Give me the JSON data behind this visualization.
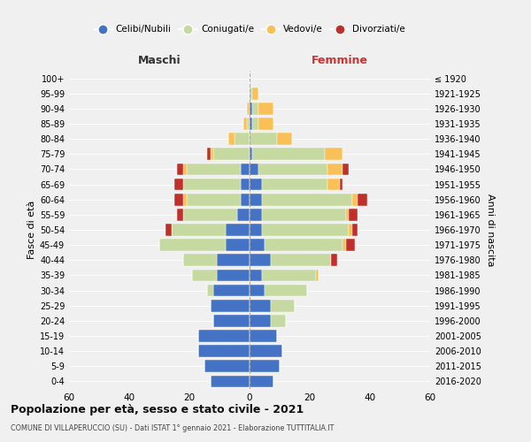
{
  "age_groups": [
    "0-4",
    "5-9",
    "10-14",
    "15-19",
    "20-24",
    "25-29",
    "30-34",
    "35-39",
    "40-44",
    "45-49",
    "50-54",
    "55-59",
    "60-64",
    "65-69",
    "70-74",
    "75-79",
    "80-84",
    "85-89",
    "90-94",
    "95-99",
    "100+"
  ],
  "birth_years": [
    "2016-2020",
    "2011-2015",
    "2006-2010",
    "2001-2005",
    "1996-2000",
    "1991-1995",
    "1986-1990",
    "1981-1985",
    "1976-1980",
    "1971-1975",
    "1966-1970",
    "1961-1965",
    "1956-1960",
    "1951-1955",
    "1946-1950",
    "1941-1945",
    "1936-1940",
    "1931-1935",
    "1926-1930",
    "1921-1925",
    "≤ 1920"
  ],
  "male": {
    "celibi": [
      13,
      15,
      17,
      17,
      12,
      13,
      12,
      11,
      11,
      8,
      8,
      4,
      3,
      3,
      3,
      0,
      0,
      0,
      0,
      0,
      0
    ],
    "coniugati": [
      0,
      0,
      0,
      0,
      0,
      0,
      2,
      8,
      11,
      22,
      18,
      18,
      18,
      19,
      18,
      12,
      5,
      1,
      0,
      0,
      0
    ],
    "vedovi": [
      0,
      0,
      0,
      0,
      0,
      0,
      0,
      0,
      0,
      0,
      0,
      0,
      1,
      0,
      1,
      1,
      2,
      1,
      1,
      0,
      0
    ],
    "divorziati": [
      0,
      0,
      0,
      0,
      0,
      0,
      0,
      0,
      0,
      0,
      2,
      2,
      3,
      3,
      2,
      1,
      0,
      0,
      0,
      0,
      0
    ]
  },
  "female": {
    "nubili": [
      8,
      10,
      11,
      9,
      7,
      7,
      5,
      4,
      7,
      5,
      4,
      4,
      4,
      4,
      3,
      1,
      0,
      1,
      1,
      0,
      0
    ],
    "coniugate": [
      0,
      0,
      0,
      0,
      5,
      8,
      14,
      18,
      20,
      26,
      29,
      28,
      30,
      22,
      23,
      24,
      9,
      2,
      2,
      1,
      0
    ],
    "vedove": [
      0,
      0,
      0,
      0,
      0,
      0,
      0,
      1,
      0,
      1,
      1,
      1,
      2,
      4,
      5,
      6,
      5,
      5,
      5,
      2,
      0
    ],
    "divorziate": [
      0,
      0,
      0,
      0,
      0,
      0,
      0,
      0,
      2,
      3,
      2,
      3,
      3,
      1,
      2,
      0,
      0,
      0,
      0,
      0,
      0
    ]
  },
  "colors": {
    "celibi": "#4472c4",
    "coniugati": "#c6d9a0",
    "vedovi": "#f9c057",
    "divorziati": "#c0302a"
  },
  "title": "Popolazione per età, sesso e stato civile - 2021",
  "subtitle": "COMUNE DI VILLAPERUCCIO (SU) - Dati ISTAT 1° gennaio 2021 - Elaborazione TUTTITALIA.IT",
  "xlabel_left": "Maschi",
  "xlabel_right": "Femmine",
  "ylabel_left": "Fasce di età",
  "ylabel_right": "Anni di nascita",
  "xlim": 60,
  "legend_labels": [
    "Celibi/Nubili",
    "Coniugati/e",
    "Vedovi/e",
    "Divorziati/e"
  ],
  "bg_color": "#f0f0f0"
}
